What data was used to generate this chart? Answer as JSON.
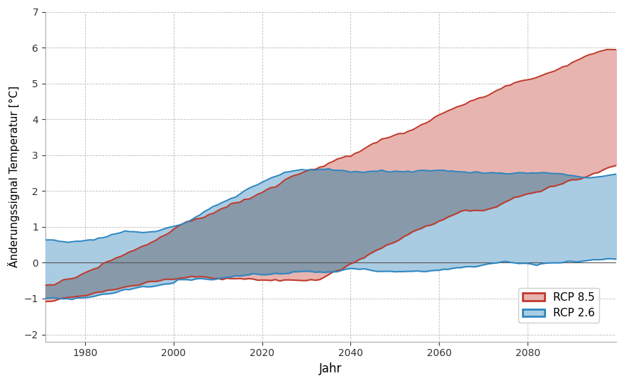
{
  "xlabel": "Jahr",
  "ylabel": "Änderungssignal Temperatur [°C]",
  "xlim": [
    1971,
    2100
  ],
  "ylim": [
    -2.2,
    7
  ],
  "yticks": [
    -2,
    -1,
    0,
    1,
    2,
    3,
    4,
    5,
    6,
    7
  ],
  "xticks": [
    1980,
    2000,
    2020,
    2040,
    2060,
    2080
  ],
  "rcp85_color": "#c0392b",
  "rcp26_color": "#2e86c1",
  "rcp85_fill": "#e8b4b0",
  "rcp26_fill": "#a9cce3",
  "overlap_fill": "#8899aa",
  "background_color": "#ffffff",
  "grid_color": "#bbbbbb",
  "linewidth": 1.4
}
